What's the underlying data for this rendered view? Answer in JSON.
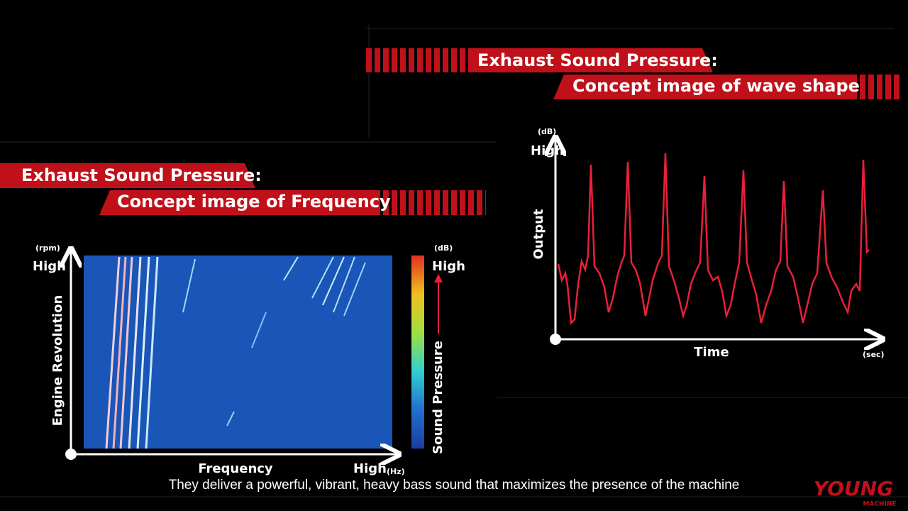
{
  "wave_panel": {
    "banner_title": "Exhaust Sound Pressure:",
    "banner_subtitle": "Concept image of wave shape",
    "y_unit": "(dB)",
    "y_high": "High",
    "y_label": "Output",
    "x_label": "Time",
    "x_unit": "(sec)"
  },
  "frequency_panel": {
    "banner_title": "Exhaust Sound Pressure:",
    "banner_subtitle": "Concept image of Frequency",
    "y_unit": "(rpm)",
    "y_high": "High",
    "y_label": "Engine Revolution",
    "x_label": "Frequency",
    "x_high": "High",
    "x_unit": "(Hz)",
    "scale_unit": "(dB)",
    "scale_high": "High",
    "scale_label": "Sound Pressure"
  },
  "caption": "They deliver a powerful, vibrant, heavy bass sound that maximizes the presence of the machine",
  "logo": {
    "main": "YOUNG",
    "sub": "MACHINE"
  }
}
